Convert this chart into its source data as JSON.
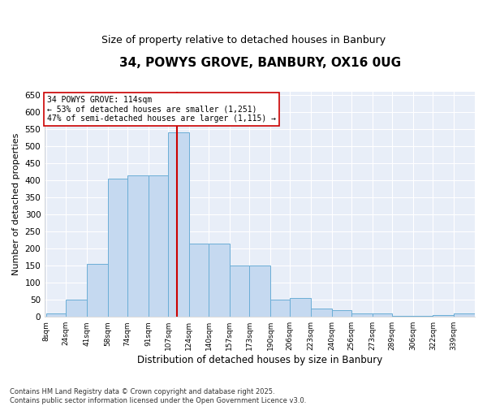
{
  "title": "34, POWYS GROVE, BANBURY, OX16 0UG",
  "subtitle": "Size of property relative to detached houses in Banbury",
  "xlabel": "Distribution of detached houses by size in Banbury",
  "ylabel": "Number of detached properties",
  "property_size": 114,
  "annotation_title": "34 POWYS GROVE: 114sqm",
  "annotation_line1": "← 53% of detached houses are smaller (1,251)",
  "annotation_line2": "47% of semi-detached houses are larger (1,115) →",
  "footer_line1": "Contains HM Land Registry data © Crown copyright and database right 2025.",
  "footer_line2": "Contains public sector information licensed under the Open Government Licence v3.0.",
  "bins": [
    8,
    24,
    41,
    58,
    74,
    91,
    107,
    124,
    140,
    157,
    173,
    190,
    206,
    223,
    240,
    256,
    273,
    289,
    306,
    322,
    339
  ],
  "counts": [
    10,
    50,
    155,
    405,
    415,
    415,
    540,
    215,
    215,
    150,
    150,
    50,
    55,
    25,
    20,
    10,
    10,
    2,
    2,
    5,
    10
  ],
  "bar_color": "#c5d9f0",
  "bar_edge_color": "#6baed6",
  "vline_color": "#cc0000",
  "bg_color": "#e8eef8",
  "annotation_box_color": "#ffffff",
  "annotation_box_edge": "#cc0000",
  "grid_color": "#ffffff",
  "ylim": [
    0,
    660
  ],
  "yticks": [
    0,
    50,
    100,
    150,
    200,
    250,
    300,
    350,
    400,
    450,
    500,
    550,
    600,
    650
  ]
}
